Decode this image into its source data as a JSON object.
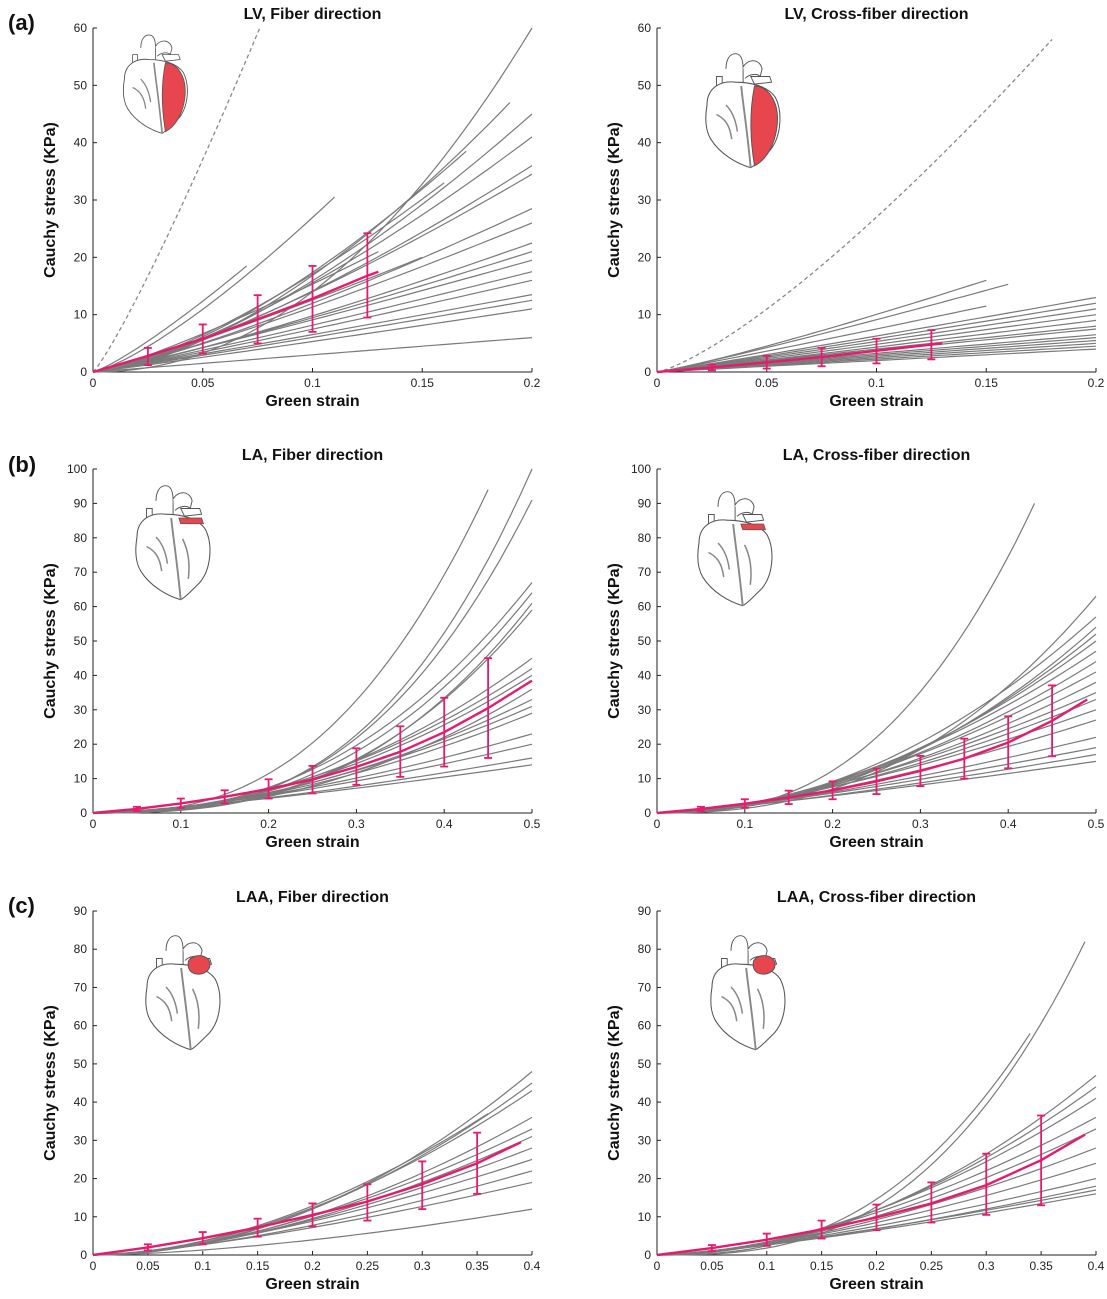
{
  "figure": {
    "row_labels": [
      "(a)",
      "(b)",
      "(c)"
    ]
  },
  "chart_data": [
    {
      "type": "line",
      "title": "LV, Fiber direction",
      "xlabel": "Green strain",
      "ylabel": "Cauchy stress (KPa)",
      "xlim": [
        0,
        0.2
      ],
      "ylim": [
        0,
        60
      ],
      "xticks": [
        "0",
        "0.05",
        "0.1",
        "0.15",
        "0.2"
      ],
      "yticks": [
        "0",
        "10",
        "20",
        "30",
        "40",
        "50",
        "60"
      ],
      "heart_icon": "heart-lv-icon",
      "dashed_curve": {
        "x_end": 0.076,
        "y_end": 60,
        "exp": 1.15
      },
      "gray_curves": [
        {
          "x_end": 0.07,
          "y_end": 18.5,
          "exp": 1.2
        },
        {
          "x_end": 0.11,
          "y_end": 30.5,
          "exp": 1.3
        },
        {
          "x_end": 0.2,
          "y_end": 60,
          "exp": 2.1
        },
        {
          "x_end": 0.19,
          "y_end": 47,
          "exp": 1.6
        },
        {
          "x_end": 0.2,
          "y_end": 45,
          "exp": 1.5
        },
        {
          "x_end": 0.2,
          "y_end": 41,
          "exp": 1.4
        },
        {
          "x_end": 0.17,
          "y_end": 38.5,
          "exp": 1.5
        },
        {
          "x_end": 0.2,
          "y_end": 36,
          "exp": 1.35
        },
        {
          "x_end": 0.2,
          "y_end": 34.5,
          "exp": 1.3
        },
        {
          "x_end": 0.16,
          "y_end": 33,
          "exp": 1.4
        },
        {
          "x_end": 0.2,
          "y_end": 28.5,
          "exp": 1.25
        },
        {
          "x_end": 0.2,
          "y_end": 26,
          "exp": 1.2
        },
        {
          "x_end": 0.2,
          "y_end": 22.5,
          "exp": 1.2
        },
        {
          "x_end": 0.2,
          "y_end": 21,
          "exp": 1.15
        },
        {
          "x_end": 0.2,
          "y_end": 19.5,
          "exp": 1.1
        },
        {
          "x_end": 0.2,
          "y_end": 17.5,
          "exp": 1.1
        },
        {
          "x_end": 0.2,
          "y_end": 16,
          "exp": 1.1
        },
        {
          "x_end": 0.2,
          "y_end": 13.5,
          "exp": 1.05
        },
        {
          "x_end": 0.2,
          "y_end": 12.5,
          "exp": 1.05
        },
        {
          "x_end": 0.2,
          "y_end": 11,
          "exp": 1.05
        },
        {
          "x_end": 0.2,
          "y_end": 6,
          "exp": 1.0
        },
        {
          "x_end": 0.15,
          "y_end": 20,
          "exp": 1.15
        },
        {
          "x_end": 0.13,
          "y_end": 21,
          "exp": 1.2
        }
      ],
      "mean": {
        "x": [
          0,
          0.025,
          0.05,
          0.075,
          0.1,
          0.125,
          0.13
        ],
        "y": [
          0,
          2.8,
          5.8,
          9.2,
          12.8,
          16.8,
          17.5
        ]
      },
      "error_bars": {
        "x": [
          0.025,
          0.05,
          0.075,
          0.1,
          0.125
        ],
        "low": [
          1.2,
          3.2,
          5.0,
          7.0,
          9.5
        ],
        "high": [
          4.2,
          8.3,
          13.4,
          18.5,
          24.2
        ]
      }
    },
    {
      "type": "line",
      "title": "LV, Cross-fiber direction",
      "xlabel": "Green strain",
      "ylabel": "Cauchy stress (KPa)",
      "xlim": [
        0,
        0.2
      ],
      "ylim": [
        0,
        60
      ],
      "xticks": [
        "0",
        "0.05",
        "0.1",
        "0.15",
        "0.2"
      ],
      "yticks": [
        "0",
        "10",
        "20",
        "30",
        "40",
        "50",
        "60"
      ],
      "heart_icon": "heart-lv-cross-icon",
      "dashed_curve": {
        "x_end": 0.18,
        "y_end": 58,
        "exp": 1.3
      },
      "gray_curves": [
        {
          "x_end": 0.15,
          "y_end": 16,
          "exp": 1.15
        },
        {
          "x_end": 0.16,
          "y_end": 15.3,
          "exp": 1.1
        },
        {
          "x_end": 0.15,
          "y_end": 11.5,
          "exp": 1.05
        },
        {
          "x_end": 0.2,
          "y_end": 13,
          "exp": 1.05
        },
        {
          "x_end": 0.2,
          "y_end": 12,
          "exp": 1.05
        },
        {
          "x_end": 0.2,
          "y_end": 11,
          "exp": 1.05
        },
        {
          "x_end": 0.2,
          "y_end": 10,
          "exp": 1.05
        },
        {
          "x_end": 0.2,
          "y_end": 9,
          "exp": 1.05
        },
        {
          "x_end": 0.2,
          "y_end": 8,
          "exp": 1.0
        },
        {
          "x_end": 0.2,
          "y_end": 7.5,
          "exp": 1.0
        },
        {
          "x_end": 0.2,
          "y_end": 6.5,
          "exp": 1.0
        },
        {
          "x_end": 0.2,
          "y_end": 6,
          "exp": 1.0
        },
        {
          "x_end": 0.2,
          "y_end": 5.5,
          "exp": 1.0
        },
        {
          "x_end": 0.2,
          "y_end": 5,
          "exp": 1.0
        },
        {
          "x_end": 0.2,
          "y_end": 4.5,
          "exp": 1.0
        },
        {
          "x_end": 0.2,
          "y_end": 4,
          "exp": 1.0
        }
      ],
      "mean": {
        "x": [
          0,
          0.025,
          0.05,
          0.075,
          0.1,
          0.125,
          0.13
        ],
        "y": [
          0,
          0.8,
          1.7,
          2.6,
          3.7,
          4.8,
          5.0
        ]
      },
      "error_bars": {
        "x": [
          0.025,
          0.05,
          0.075,
          0.1,
          0.125
        ],
        "low": [
          0.3,
          0.6,
          1.0,
          1.5,
          2.2
        ],
        "high": [
          1.3,
          2.8,
          4.2,
          5.8,
          7.3
        ]
      }
    },
    {
      "type": "line",
      "title": "LA, Fiber direction",
      "xlabel": "Green strain",
      "ylabel": "Cauchy stress (KPa)",
      "xlim": [
        0,
        0.5
      ],
      "ylim": [
        0,
        100
      ],
      "xticks": [
        "0",
        "0.1",
        "0.2",
        "0.3",
        "0.4",
        "0.5"
      ],
      "yticks": [
        "0",
        "10",
        "20",
        "30",
        "40",
        "50",
        "60",
        "70",
        "80",
        "90",
        "100"
      ],
      "heart_icon": "heart-la-icon",
      "dashed_curve": null,
      "gray_curves": [
        {
          "x_end": 0.45,
          "y_end": 94,
          "exp": 2.6
        },
        {
          "x_end": 0.5,
          "y_end": 100,
          "exp": 2.9
        },
        {
          "x_end": 0.5,
          "y_end": 91,
          "exp": 2.8
        },
        {
          "x_end": 0.5,
          "y_end": 67,
          "exp": 2.4
        },
        {
          "x_end": 0.5,
          "y_end": 64,
          "exp": 2.5
        },
        {
          "x_end": 0.5,
          "y_end": 61,
          "exp": 2.7
        },
        {
          "x_end": 0.5,
          "y_end": 59,
          "exp": 2.6
        },
        {
          "x_end": 0.5,
          "y_end": 45,
          "exp": 2.1
        },
        {
          "x_end": 0.5,
          "y_end": 42,
          "exp": 2.0
        },
        {
          "x_end": 0.5,
          "y_end": 40,
          "exp": 2.0
        },
        {
          "x_end": 0.5,
          "y_end": 36,
          "exp": 2.2
        },
        {
          "x_end": 0.5,
          "y_end": 33,
          "exp": 1.9
        },
        {
          "x_end": 0.5,
          "y_end": 31,
          "exp": 1.8
        },
        {
          "x_end": 0.5,
          "y_end": 29,
          "exp": 1.8
        },
        {
          "x_end": 0.5,
          "y_end": 23,
          "exp": 1.6
        },
        {
          "x_end": 0.5,
          "y_end": 20,
          "exp": 1.5
        },
        {
          "x_end": 0.5,
          "y_end": 16,
          "exp": 1.4
        },
        {
          "x_end": 0.5,
          "y_end": 14,
          "exp": 1.3
        }
      ],
      "mean": {
        "x": [
          0,
          0.05,
          0.1,
          0.15,
          0.2,
          0.25,
          0.3,
          0.35,
          0.4,
          0.45,
          0.5
        ],
        "y": [
          0,
          1.2,
          2.8,
          4.7,
          7.0,
          9.7,
          13.4,
          17.8,
          23.5,
          30.5,
          38.5
        ]
      },
      "error_bars": {
        "x": [
          0.05,
          0.1,
          0.15,
          0.2,
          0.25,
          0.3,
          0.35,
          0.4,
          0.45
        ],
        "low": [
          0.6,
          1.5,
          2.8,
          4.2,
          5.7,
          8.2,
          10.5,
          13.5,
          16.0
        ],
        "high": [
          1.8,
          4.2,
          6.6,
          9.8,
          13.7,
          18.8,
          25.2,
          33.5,
          45.0
        ]
      }
    },
    {
      "type": "line",
      "title": "LA, Cross-fiber direction",
      "xlabel": "Green strain",
      "ylabel": "Cauchy stress (KPa)",
      "xlim": [
        0,
        0.5
      ],
      "ylim": [
        0,
        100
      ],
      "xticks": [
        "0",
        "0.1",
        "0.2",
        "0.3",
        "0.4",
        "0.5"
      ],
      "yticks": [
        "0",
        "10",
        "20",
        "30",
        "40",
        "50",
        "60",
        "70",
        "80",
        "90",
        "100"
      ],
      "heart_icon": "heart-la-cross-icon",
      "dashed_curve": null,
      "gray_curves": [
        {
          "x_end": 0.43,
          "y_end": 90,
          "exp": 2.6
        },
        {
          "x_end": 0.5,
          "y_end": 63,
          "exp": 2.4
        },
        {
          "x_end": 0.5,
          "y_end": 57,
          "exp": 2.0
        },
        {
          "x_end": 0.5,
          "y_end": 54,
          "exp": 2.1
        },
        {
          "x_end": 0.5,
          "y_end": 52,
          "exp": 2.0
        },
        {
          "x_end": 0.5,
          "y_end": 50,
          "exp": 1.9
        },
        {
          "x_end": 0.5,
          "y_end": 47,
          "exp": 1.8
        },
        {
          "x_end": 0.5,
          "y_end": 44,
          "exp": 1.8
        },
        {
          "x_end": 0.5,
          "y_end": 41,
          "exp": 1.7
        },
        {
          "x_end": 0.5,
          "y_end": 38,
          "exp": 1.7
        },
        {
          "x_end": 0.5,
          "y_end": 35,
          "exp": 1.6
        },
        {
          "x_end": 0.5,
          "y_end": 33,
          "exp": 1.6
        },
        {
          "x_end": 0.5,
          "y_end": 30,
          "exp": 1.5
        },
        {
          "x_end": 0.5,
          "y_end": 27,
          "exp": 1.5
        },
        {
          "x_end": 0.5,
          "y_end": 22,
          "exp": 1.4
        },
        {
          "x_end": 0.5,
          "y_end": 19,
          "exp": 1.3
        },
        {
          "x_end": 0.5,
          "y_end": 17,
          "exp": 1.3
        },
        {
          "x_end": 0.5,
          "y_end": 15,
          "exp": 1.2
        }
      ],
      "mean": {
        "x": [
          0,
          0.05,
          0.1,
          0.15,
          0.2,
          0.25,
          0.3,
          0.35,
          0.4,
          0.45,
          0.49
        ],
        "y": [
          0,
          1.2,
          2.7,
          4.5,
          6.6,
          9.2,
          12.2,
          15.8,
          20.5,
          26.8,
          33.0
        ]
      },
      "error_bars": {
        "x": [
          0.05,
          0.1,
          0.15,
          0.2,
          0.25,
          0.3,
          0.35,
          0.4,
          0.45
        ],
        "low": [
          0.6,
          1.5,
          2.6,
          4.0,
          5.5,
          7.8,
          10.0,
          13.0,
          16.5
        ],
        "high": [
          1.8,
          4.0,
          6.5,
          9.2,
          12.9,
          16.6,
          21.6,
          28.1,
          37.1
        ]
      }
    },
    {
      "type": "line",
      "title": "LAA, Fiber direction",
      "xlabel": "Green strain",
      "ylabel": "Cauchy stress (KPa)",
      "xlim": [
        0,
        0.4
      ],
      "ylim": [
        0,
        90
      ],
      "xticks": [
        "0",
        "0.05",
        "0.1",
        "0.15",
        "0.2",
        "0.25",
        "0.3",
        "0.35",
        "0.4"
      ],
      "yticks": [
        "0",
        "10",
        "20",
        "30",
        "40",
        "50",
        "60",
        "70",
        "80",
        "90"
      ],
      "heart_icon": "heart-laa-icon",
      "dashed_curve": null,
      "gray_curves": [
        {
          "x_end": 0.4,
          "y_end": 48,
          "exp": 2.0
        },
        {
          "x_end": 0.4,
          "y_end": 45,
          "exp": 1.9
        },
        {
          "x_end": 0.4,
          "y_end": 43,
          "exp": 1.8
        },
        {
          "x_end": 0.36,
          "y_end": 37,
          "exp": 1.8
        },
        {
          "x_end": 0.4,
          "y_end": 36,
          "exp": 1.8
        },
        {
          "x_end": 0.4,
          "y_end": 33,
          "exp": 1.7
        },
        {
          "x_end": 0.4,
          "y_end": 31,
          "exp": 1.7
        },
        {
          "x_end": 0.4,
          "y_end": 28,
          "exp": 1.6
        },
        {
          "x_end": 0.4,
          "y_end": 25,
          "exp": 1.5
        },
        {
          "x_end": 0.4,
          "y_end": 22,
          "exp": 1.5
        },
        {
          "x_end": 0.4,
          "y_end": 19,
          "exp": 1.4
        },
        {
          "x_end": 0.4,
          "y_end": 12,
          "exp": 1.6
        }
      ],
      "mean": {
        "x": [
          0,
          0.05,
          0.1,
          0.15,
          0.2,
          0.25,
          0.3,
          0.35,
          0.39
        ],
        "y": [
          0,
          2.0,
          4.4,
          7.2,
          10.5,
          14.0,
          18.5,
          24.0,
          29.5
        ]
      },
      "error_bars": {
        "x": [
          0.05,
          0.1,
          0.15,
          0.2,
          0.25,
          0.3,
          0.35
        ],
        "low": [
          1.2,
          2.8,
          4.8,
          7.5,
          9.0,
          12.0,
          16.0
        ],
        "high": [
          2.8,
          6.0,
          9.5,
          13.5,
          18.5,
          24.5,
          32.0
        ]
      }
    },
    {
      "type": "line",
      "title": "LAA, Cross-fiber direction",
      "xlabel": "Green strain",
      "ylabel": "Cauchy stress (KPa)",
      "xlim": [
        0,
        0.4
      ],
      "ylim": [
        0,
        90
      ],
      "xticks": [
        "0",
        "0.05",
        "0.1",
        "0.15",
        "0.2",
        "0.25",
        "0.3",
        "0.35",
        "0.4"
      ],
      "yticks": [
        "0",
        "10",
        "20",
        "30",
        "40",
        "50",
        "60",
        "70",
        "80",
        "90"
      ],
      "heart_icon": "heart-laa-cross-icon",
      "dashed_curve": null,
      "gray_curves": [
        {
          "x_end": 0.39,
          "y_end": 82,
          "exp": 2.8
        },
        {
          "x_end": 0.34,
          "y_end": 58,
          "exp": 2.6
        },
        {
          "x_end": 0.4,
          "y_end": 47,
          "exp": 2.0
        },
        {
          "x_end": 0.4,
          "y_end": 44,
          "exp": 1.9
        },
        {
          "x_end": 0.4,
          "y_end": 41,
          "exp": 1.8
        },
        {
          "x_end": 0.4,
          "y_end": 36,
          "exp": 1.7
        },
        {
          "x_end": 0.4,
          "y_end": 33,
          "exp": 1.7
        },
        {
          "x_end": 0.4,
          "y_end": 28,
          "exp": 1.6
        },
        {
          "x_end": 0.4,
          "y_end": 24,
          "exp": 1.5
        },
        {
          "x_end": 0.4,
          "y_end": 20,
          "exp": 1.4
        },
        {
          "x_end": 0.4,
          "y_end": 18,
          "exp": 1.4
        },
        {
          "x_end": 0.4,
          "y_end": 17,
          "exp": 1.3
        },
        {
          "x_end": 0.4,
          "y_end": 16,
          "exp": 1.3
        }
      ],
      "mean": {
        "x": [
          0,
          0.05,
          0.1,
          0.15,
          0.2,
          0.25,
          0.3,
          0.35,
          0.39
        ],
        "y": [
          0,
          1.8,
          4.0,
          6.7,
          9.8,
          13.5,
          18.3,
          24.8,
          31.5
        ]
      },
      "error_bars": {
        "x": [
          0.05,
          0.1,
          0.15,
          0.2,
          0.25,
          0.3,
          0.35
        ],
        "low": [
          1.0,
          2.4,
          4.3,
          6.5,
          8.5,
          10.5,
          13.0
        ],
        "high": [
          2.6,
          5.6,
          9.0,
          13.2,
          19.0,
          26.5,
          36.5
        ]
      }
    }
  ],
  "colors": {
    "curves": "#7a7a7a",
    "mean": "#e8196e",
    "axis": "#222222",
    "heart_fill": "#e8464e"
  }
}
